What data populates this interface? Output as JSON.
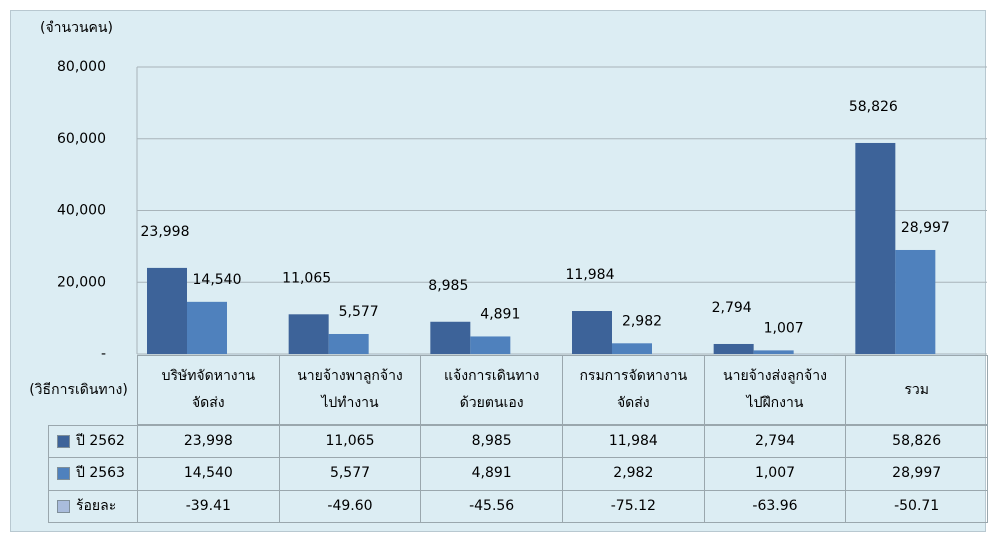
{
  "chart_data": {
    "type": "bar",
    "y_label": "(จำนวนคน)",
    "x_label": "(วิธีการเดินทาง)",
    "categories": [
      "บริษัทจัดหางาน\nจัดส่ง",
      "นายจ้างพาลูกจ้าง\nไปทำงาน",
      "แจ้งการเดินทาง\nด้วยตนเอง",
      "กรมการจัดหางาน\nจัดส่ง",
      "นายจ้างส่งลูกจ้าง\nไปฝึกงาน",
      "รวม"
    ],
    "series": [
      {
        "name": "ปี 2562",
        "color": "#3d6399",
        "values": [
          23998,
          11065,
          8985,
          11984,
          2794,
          58826
        ],
        "value_labels": [
          "23,998",
          "11,065",
          "8,985",
          "11,984",
          "2,794",
          "58,826"
        ]
      },
      {
        "name": "ปี 2563",
        "color": "#4f81bd",
        "values": [
          14540,
          5577,
          4891,
          2982,
          1007,
          28997
        ],
        "value_labels": [
          "14,540",
          "5,577",
          "4,891",
          "2,982",
          "1,007",
          "28,997"
        ]
      },
      {
        "name": "ร้อยละ",
        "color": "#a9bcdc",
        "values": [
          -39.41,
          -49.6,
          -45.56,
          -75.12,
          -63.96,
          -50.71
        ],
        "value_labels": [
          "-39.41",
          "-49.60",
          "-45.56",
          "-75.12",
          "-63.96",
          "-50.71"
        ]
      }
    ],
    "ylim": [
      0,
      80000
    ],
    "yticks": [
      {
        "value": 0,
        "label": "-"
      },
      {
        "value": 20000,
        "label": "20,000"
      },
      {
        "value": 40000,
        "label": "40,000"
      },
      {
        "value": 60000,
        "label": "60,000"
      },
      {
        "value": 80000,
        "label": "80,000"
      }
    ],
    "grid": true
  }
}
